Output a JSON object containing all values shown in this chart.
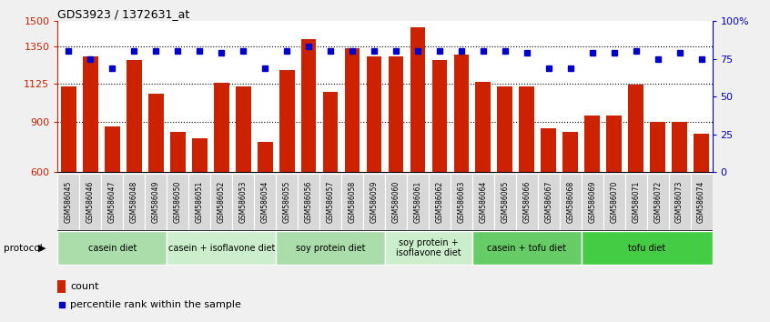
{
  "title": "GDS3923 / 1372631_at",
  "samples": [
    "GSM586045",
    "GSM586046",
    "GSM586047",
    "GSM586048",
    "GSM586049",
    "GSM586050",
    "GSM586051",
    "GSM586052",
    "GSM586053",
    "GSM586054",
    "GSM586055",
    "GSM586056",
    "GSM586057",
    "GSM586058",
    "GSM586059",
    "GSM586060",
    "GSM586061",
    "GSM586062",
    "GSM586063",
    "GSM586064",
    "GSM586065",
    "GSM586066",
    "GSM586067",
    "GSM586068",
    "GSM586069",
    "GSM586070",
    "GSM586071",
    "GSM586072",
    "GSM586073",
    "GSM586074"
  ],
  "counts": [
    1110,
    1290,
    870,
    1270,
    1070,
    840,
    800,
    1130,
    1110,
    780,
    1210,
    1390,
    1080,
    1340,
    1290,
    1290,
    1460,
    1270,
    1300,
    1140,
    1110,
    1110,
    860,
    840,
    940,
    940,
    1120,
    900,
    900,
    830
  ],
  "percentiles": [
    80,
    75,
    69,
    80,
    80,
    80,
    80,
    79,
    80,
    69,
    80,
    83,
    80,
    80,
    80,
    80,
    80,
    80,
    80,
    80,
    80,
    79,
    69,
    69,
    79,
    79,
    80,
    75,
    79,
    75
  ],
  "bar_color": "#cc2200",
  "dot_color": "#0000cc",
  "ylim_left": [
    600,
    1500
  ],
  "ylim_right": [
    0,
    100
  ],
  "yticks_left": [
    600,
    900,
    1125,
    1350,
    1500
  ],
  "yticks_right": [
    0,
    25,
    50,
    75,
    100
  ],
  "ytick_labels_left": [
    "600",
    "900",
    "1125",
    "1350",
    "1500"
  ],
  "ytick_labels_right": [
    "0",
    "25",
    "50",
    "75",
    "100%"
  ],
  "hlines": [
    900,
    1125,
    1350
  ],
  "groups": [
    {
      "label": "casein diet",
      "start": 0,
      "end": 5,
      "color": "#aaddaa"
    },
    {
      "label": "casein + isoflavone diet",
      "start": 5,
      "end": 10,
      "color": "#cceecc"
    },
    {
      "label": "soy protein diet",
      "start": 10,
      "end": 15,
      "color": "#aaddaa"
    },
    {
      "label": "soy protein +\nisoflavone diet",
      "start": 15,
      "end": 19,
      "color": "#cceecc"
    },
    {
      "label": "casein + tofu diet",
      "start": 19,
      "end": 24,
      "color": "#66cc66"
    },
    {
      "label": "tofu diet",
      "start": 24,
      "end": 30,
      "color": "#44cc44"
    }
  ],
  "protocol_label": "protocol",
  "legend_count_label": "count",
  "legend_pct_label": "percentile rank within the sample",
  "bg_color": "#f0f0f0",
  "plot_bg_color": "#ffffff",
  "xtick_bg": "#dddddd"
}
